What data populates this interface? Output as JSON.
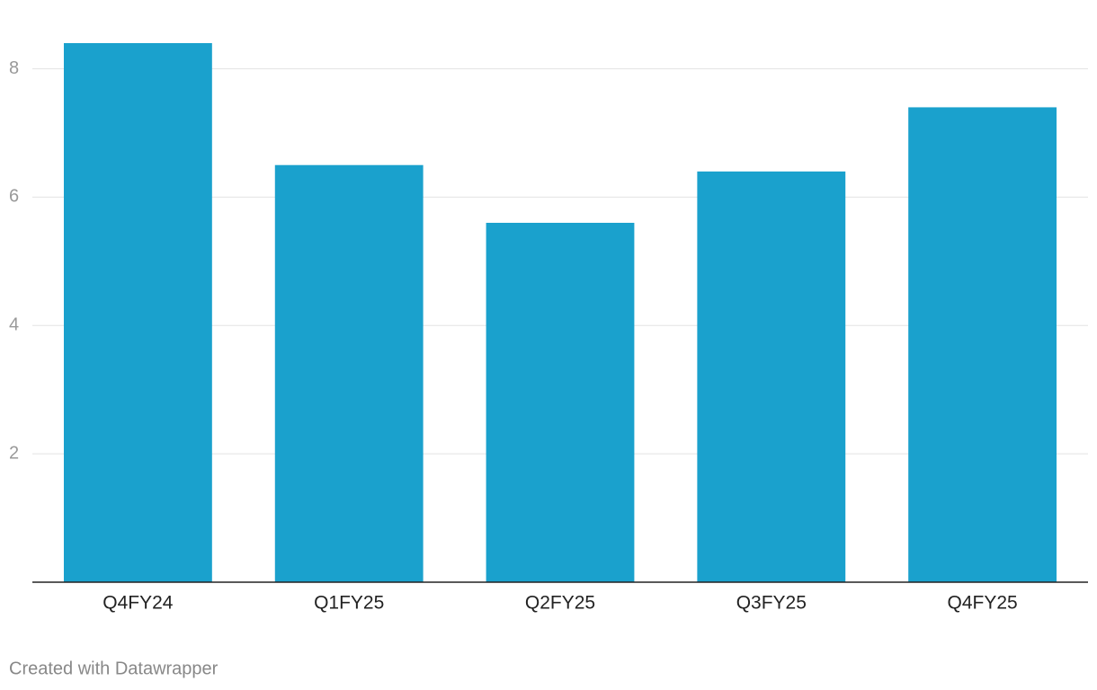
{
  "chart_data": {
    "type": "bar",
    "categories": [
      "Q4FY24",
      "Q1FY25",
      "Q2FY25",
      "Q3FY25",
      "Q4FY25"
    ],
    "values": [
      8.4,
      6.5,
      5.6,
      6.4,
      7.4
    ],
    "color": "#1aa1cd",
    "ylim": [
      0,
      8.4
    ],
    "yticks": [
      2,
      4,
      6,
      8
    ],
    "grid": true,
    "credit": "Created with Datawrapper"
  }
}
